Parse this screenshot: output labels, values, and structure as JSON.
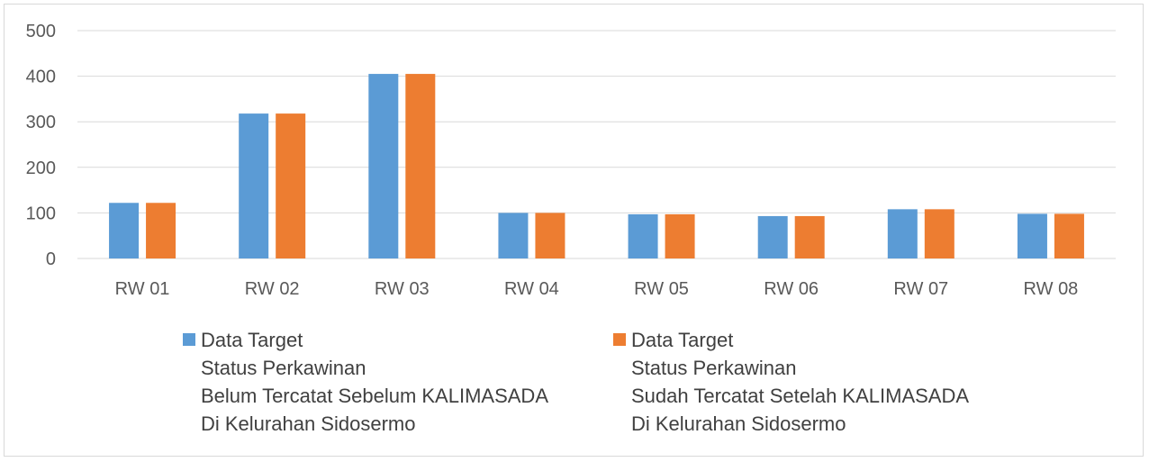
{
  "chart_data": {
    "type": "bar",
    "categories": [
      "RW 01",
      "RW 02",
      "RW 03",
      "RW 04",
      "RW 05",
      "RW 06",
      "RW 07",
      "RW 08"
    ],
    "series": [
      {
        "name": "Data Target Status Perkawinan Belum Tercatat Sebelum KALIMASADA Di Kelurahan Sidosermo",
        "name_lines": [
          "Data Target",
          "Status Perkawinan",
          "Belum Tercatat Sebelum KALIMASADA",
          "Di Kelurahan Sidosermo"
        ],
        "color": "#5b9bd5",
        "values": [
          122,
          318,
          405,
          100,
          97,
          93,
          108,
          98
        ]
      },
      {
        "name": "Data Target Status Perkawinan Sudah Tercatat Setelah KALIMASADA Di Kelurahan Sidosermo",
        "name_lines": [
          "Data Target",
          "Status Perkawinan",
          "Sudah Tercatat Setelah KALIMASADA",
          "Di Kelurahan Sidosermo"
        ],
        "color": "#ed7d31",
        "values": [
          122,
          318,
          405,
          100,
          97,
          93,
          108,
          98
        ]
      }
    ],
    "y_ticks": [
      "0",
      "100",
      "200",
      "300",
      "400",
      "500"
    ],
    "ylim": [
      0,
      500
    ],
    "grid": true,
    "legend_position": "bottom",
    "title": "",
    "xlabel": "",
    "ylabel": ""
  }
}
